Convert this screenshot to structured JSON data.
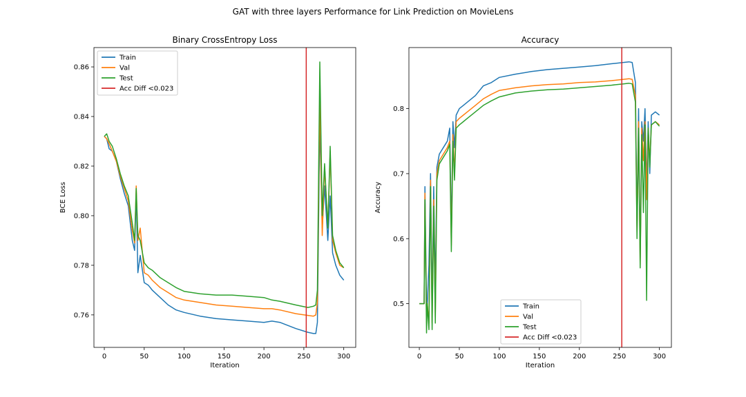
{
  "suptitle": "GAT with three layers Performance for Link Prediction on MovieLens",
  "colors": {
    "train": "#1f77b4",
    "val": "#ff7f0e",
    "test": "#2ca02c",
    "marker": "#d62728"
  },
  "chart_data": [
    {
      "type": "line",
      "title": "Binary CrossEntropy Loss",
      "xlabel": "Iteration",
      "ylabel": "BCE Loss",
      "xlim": [
        -13,
        315
      ],
      "ylim": [
        0.7469,
        0.8678
      ],
      "xticks": [
        0,
        50,
        100,
        150,
        200,
        250,
        300
      ],
      "yticks": [
        0.76,
        0.78,
        0.8,
        0.82,
        0.84,
        0.86
      ],
      "ytick_labels": [
        "0.76",
        "0.78",
        "0.80",
        "0.82",
        "0.84",
        "0.86"
      ],
      "legend_position": "upper left",
      "vline": {
        "x": 253,
        "label": "Acc Diff <0.023"
      },
      "series": [
        {
          "name": "Train",
          "x": [
            0,
            3,
            6,
            10,
            15,
            20,
            25,
            30,
            35,
            38,
            40,
            42,
            45,
            50,
            55,
            60,
            70,
            80,
            90,
            100,
            120,
            140,
            160,
            180,
            200,
            210,
            220,
            240,
            255,
            262,
            265,
            267,
            270,
            273,
            276,
            280,
            283,
            286,
            290,
            295,
            300
          ],
          "y": [
            0.832,
            0.831,
            0.827,
            0.826,
            0.822,
            0.815,
            0.809,
            0.804,
            0.79,
            0.786,
            0.809,
            0.777,
            0.784,
            0.773,
            0.772,
            0.77,
            0.767,
            0.764,
            0.762,
            0.761,
            0.7595,
            0.7585,
            0.758,
            0.7575,
            0.757,
            0.7575,
            0.757,
            0.7545,
            0.753,
            0.7525,
            0.7525,
            0.757,
            0.838,
            0.795,
            0.812,
            0.79,
            0.808,
            0.785,
            0.78,
            0.776,
            0.774
          ]
        },
        {
          "name": "Val",
          "x": [
            0,
            3,
            6,
            10,
            15,
            20,
            25,
            30,
            35,
            38,
            40,
            42,
            45,
            50,
            55,
            60,
            70,
            80,
            90,
            100,
            120,
            140,
            160,
            180,
            200,
            210,
            220,
            240,
            255,
            262,
            265,
            267,
            270,
            273,
            276,
            280,
            283,
            286,
            290,
            295,
            300
          ],
          "y": [
            0.832,
            0.831,
            0.829,
            0.826,
            0.822,
            0.816,
            0.811,
            0.806,
            0.794,
            0.789,
            0.812,
            0.79,
            0.795,
            0.777,
            0.776,
            0.774,
            0.771,
            0.769,
            0.767,
            0.766,
            0.765,
            0.764,
            0.7635,
            0.763,
            0.7625,
            0.7625,
            0.762,
            0.7605,
            0.7598,
            0.7595,
            0.76,
            0.765,
            0.848,
            0.792,
            0.82,
            0.795,
            0.826,
            0.79,
            0.785,
            0.78,
            0.779
          ]
        },
        {
          "name": "Test",
          "x": [
            0,
            3,
            6,
            10,
            15,
            20,
            25,
            30,
            35,
            38,
            40,
            42,
            45,
            50,
            55,
            60,
            70,
            80,
            90,
            100,
            120,
            140,
            160,
            180,
            200,
            210,
            220,
            240,
            255,
            262,
            265,
            267,
            270,
            273,
            276,
            280,
            283,
            286,
            290,
            295,
            300
          ],
          "y": [
            0.832,
            0.833,
            0.83,
            0.828,
            0.823,
            0.817,
            0.812,
            0.808,
            0.797,
            0.79,
            0.811,
            0.792,
            0.79,
            0.781,
            0.779,
            0.778,
            0.775,
            0.773,
            0.771,
            0.7695,
            0.7685,
            0.768,
            0.768,
            0.7675,
            0.767,
            0.766,
            0.7655,
            0.764,
            0.763,
            0.7635,
            0.764,
            0.77,
            0.862,
            0.8,
            0.821,
            0.795,
            0.828,
            0.792,
            0.786,
            0.781,
            0.779
          ]
        }
      ]
    },
    {
      "type": "line",
      "title": "Accuracy",
      "xlabel": "Iteration",
      "ylabel": "Accuracy",
      "xlim": [
        -13,
        315
      ],
      "ylim": [
        0.4328,
        0.8939
      ],
      "xticks": [
        0,
        50,
        100,
        150,
        200,
        250,
        300
      ],
      "yticks": [
        0.5,
        0.6,
        0.7,
        0.8
      ],
      "ytick_labels": [
        "0.5",
        "0.6",
        "0.7",
        "0.8"
      ],
      "legend_position": "lower center",
      "vline": {
        "x": 253,
        "label": "Acc Diff <0.023"
      },
      "series": [
        {
          "name": "Train",
          "x": [
            0,
            3,
            6,
            7,
            9,
            10,
            12,
            14,
            16,
            18,
            20,
            22,
            25,
            30,
            35,
            38,
            40,
            42,
            44,
            46,
            50,
            55,
            60,
            70,
            80,
            90,
            100,
            120,
            140,
            160,
            180,
            200,
            220,
            240,
            255,
            262,
            266,
            270,
            272,
            274,
            276,
            278,
            280,
            282,
            284,
            286,
            288,
            290,
            295,
            300
          ],
          "y": [
            0.5,
            0.5,
            0.5,
            0.68,
            0.5,
            0.5,
            0.56,
            0.7,
            0.5,
            0.68,
            0.52,
            0.71,
            0.73,
            0.74,
            0.75,
            0.77,
            0.61,
            0.78,
            0.74,
            0.79,
            0.8,
            0.805,
            0.81,
            0.82,
            0.835,
            0.84,
            0.848,
            0.853,
            0.857,
            0.86,
            0.862,
            0.864,
            0.866,
            0.869,
            0.871,
            0.872,
            0.871,
            0.84,
            0.62,
            0.8,
            0.57,
            0.78,
            0.75,
            0.8,
            0.68,
            0.78,
            0.7,
            0.79,
            0.795,
            0.79
          ]
        },
        {
          "name": "Val",
          "x": [
            0,
            3,
            6,
            7,
            9,
            10,
            12,
            14,
            16,
            18,
            20,
            22,
            25,
            30,
            35,
            38,
            40,
            42,
            44,
            46,
            50,
            55,
            60,
            70,
            80,
            90,
            100,
            120,
            140,
            160,
            180,
            200,
            220,
            240,
            255,
            262,
            266,
            270,
            272,
            274,
            276,
            278,
            280,
            282,
            284,
            286,
            288,
            290,
            295,
            300
          ],
          "y": [
            0.5,
            0.5,
            0.5,
            0.67,
            0.47,
            0.5,
            0.47,
            0.69,
            0.47,
            0.66,
            0.48,
            0.7,
            0.72,
            0.73,
            0.74,
            0.75,
            0.59,
            0.76,
            0.7,
            0.78,
            0.785,
            0.79,
            0.795,
            0.805,
            0.815,
            0.822,
            0.828,
            0.832,
            0.835,
            0.837,
            0.838,
            0.84,
            0.841,
            0.843,
            0.845,
            0.846,
            0.845,
            0.82,
            0.61,
            0.78,
            0.56,
            0.77,
            0.72,
            0.78,
            0.66,
            0.77,
            0.72,
            0.775,
            0.78,
            0.775
          ]
        },
        {
          "name": "Test",
          "x": [
            0,
            3,
            6,
            7,
            9,
            10,
            12,
            14,
            16,
            18,
            20,
            22,
            25,
            30,
            35,
            38,
            40,
            42,
            44,
            46,
            50,
            55,
            60,
            70,
            80,
            90,
            100,
            120,
            140,
            160,
            180,
            200,
            220,
            240,
            255,
            262,
            266,
            270,
            272,
            274,
            276,
            278,
            280,
            282,
            284,
            286,
            288,
            290,
            295,
            300
          ],
          "y": [
            0.5,
            0.5,
            0.5,
            0.66,
            0.455,
            0.5,
            0.46,
            0.68,
            0.46,
            0.65,
            0.47,
            0.69,
            0.715,
            0.725,
            0.735,
            0.745,
            0.58,
            0.75,
            0.69,
            0.77,
            0.775,
            0.78,
            0.785,
            0.795,
            0.805,
            0.812,
            0.818,
            0.824,
            0.827,
            0.829,
            0.83,
            0.832,
            0.834,
            0.836,
            0.838,
            0.839,
            0.838,
            0.81,
            0.6,
            0.77,
            0.555,
            0.76,
            0.64,
            0.775,
            0.505,
            0.77,
            0.71,
            0.775,
            0.78,
            0.773
          ]
        }
      ]
    }
  ]
}
